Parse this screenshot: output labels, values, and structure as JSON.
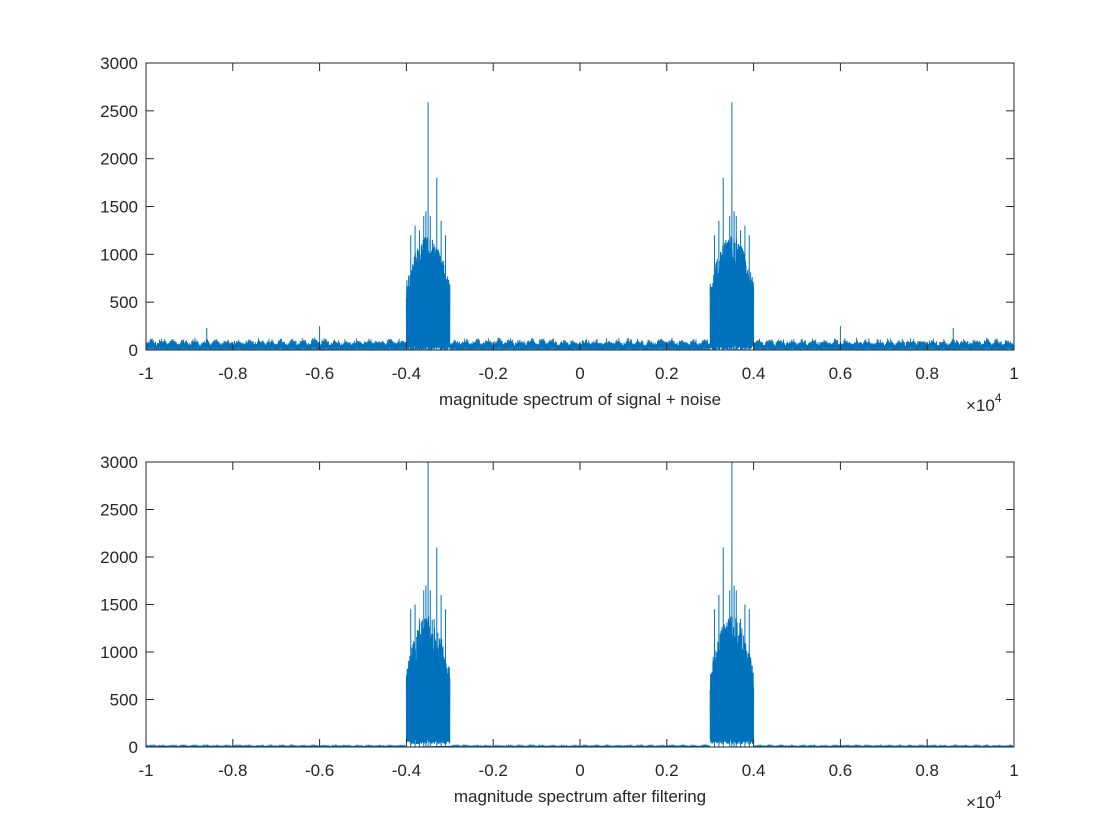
{
  "colors": {
    "series": "#0072BD",
    "axis": "#262626",
    "background": "#ffffff"
  },
  "chart_data": [
    {
      "type": "line",
      "xlabel": "magnitude spectrum of signal + noise",
      "ylabel": "",
      "title": "",
      "xlim": [
        -10000,
        10000
      ],
      "ylim": [
        0,
        3000
      ],
      "x_exponent_label": "×10",
      "x_exponent_power": "4",
      "x_tick_labels": [
        "-1",
        "-0.8",
        "-0.6",
        "-0.4",
        "-0.2",
        "0",
        "0.2",
        "0.4",
        "0.6",
        "0.8",
        "1"
      ],
      "x_tick_values": [
        -10000,
        -8000,
        -6000,
        -4000,
        -2000,
        0,
        2000,
        4000,
        6000,
        8000,
        10000
      ],
      "y_tick_labels": [
        "0",
        "500",
        "1000",
        "1500",
        "2000",
        "2500",
        "3000"
      ],
      "y_tick_values": [
        0,
        500,
        1000,
        1500,
        2000,
        2500,
        3000
      ],
      "grid": false,
      "series": [
        {
          "noise_floor_level": 130,
          "noise_floor_period": 250,
          "bands": [
            {
              "x_start": -4000,
              "x_end": -3000,
              "fill_low": 0,
              "fill_high": 1200
            },
            {
              "x_start": 3000,
              "x_end": 4000,
              "fill_low": 0,
              "fill_high": 1200
            }
          ],
          "spikes": [
            {
              "x": -3900,
              "y": 1200
            },
            {
              "x": -3800,
              "y": 1300
            },
            {
              "x": -3700,
              "y": 1250
            },
            {
              "x": -3600,
              "y": 1400
            },
            {
              "x": -3550,
              "y": 1450
            },
            {
              "x": -3500,
              "y": 2590
            },
            {
              "x": -3450,
              "y": 1400
            },
            {
              "x": -3300,
              "y": 1800
            },
            {
              "x": -3200,
              "y": 1350
            },
            {
              "x": -3100,
              "y": 1200
            },
            {
              "x": 3100,
              "y": 1200
            },
            {
              "x": 3200,
              "y": 1350
            },
            {
              "x": 3300,
              "y": 1800
            },
            {
              "x": 3450,
              "y": 1400
            },
            {
              "x": 3500,
              "y": 2590
            },
            {
              "x": 3550,
              "y": 1450
            },
            {
              "x": 3600,
              "y": 1400
            },
            {
              "x": 3700,
              "y": 1250
            },
            {
              "x": 3800,
              "y": 1300
            },
            {
              "x": 3900,
              "y": 1200
            },
            {
              "x": -6000,
              "y": 250
            },
            {
              "x": 6000,
              "y": 250
            },
            {
              "x": -8600,
              "y": 230
            },
            {
              "x": 8600,
              "y": 230
            }
          ]
        }
      ]
    },
    {
      "type": "line",
      "xlabel": "magnitude spectrum after filtering",
      "ylabel": "",
      "title": "",
      "xlim": [
        -10000,
        10000
      ],
      "ylim": [
        0,
        3000
      ],
      "x_exponent_label": "×10",
      "x_exponent_power": "4",
      "x_tick_labels": [
        "-1",
        "-0.8",
        "-0.6",
        "-0.4",
        "-0.2",
        "0",
        "0.2",
        "0.4",
        "0.6",
        "0.8",
        "1"
      ],
      "x_tick_values": [
        -10000,
        -8000,
        -6000,
        -4000,
        -2000,
        0,
        2000,
        4000,
        6000,
        8000,
        10000
      ],
      "y_tick_labels": [
        "0",
        "500",
        "1000",
        "1500",
        "2000",
        "2500",
        "3000"
      ],
      "y_tick_values": [
        0,
        500,
        1000,
        1500,
        2000,
        2500,
        3000
      ],
      "grid": false,
      "series": [
        {
          "noise_floor_level": 20,
          "noise_floor_period": 250,
          "bands": [
            {
              "x_start": -4000,
              "x_end": -3000,
              "fill_low": 30,
              "fill_high": 1400
            },
            {
              "x_start": 3000,
              "x_end": 4000,
              "fill_low": 30,
              "fill_high": 1400
            }
          ],
          "spikes": [
            {
              "x": -3900,
              "y": 1450
            },
            {
              "x": -3800,
              "y": 1500
            },
            {
              "x": -3700,
              "y": 1350
            },
            {
              "x": -3600,
              "y": 1650
            },
            {
              "x": -3550,
              "y": 1700
            },
            {
              "x": -3500,
              "y": 3000
            },
            {
              "x": -3450,
              "y": 1650
            },
            {
              "x": -3300,
              "y": 2100
            },
            {
              "x": -3200,
              "y": 1600
            },
            {
              "x": -3100,
              "y": 1450
            },
            {
              "x": 3100,
              "y": 1450
            },
            {
              "x": 3200,
              "y": 1600
            },
            {
              "x": 3300,
              "y": 2100
            },
            {
              "x": 3450,
              "y": 1650
            },
            {
              "x": 3500,
              "y": 3000
            },
            {
              "x": 3550,
              "y": 1700
            },
            {
              "x": 3600,
              "y": 1650
            },
            {
              "x": 3700,
              "y": 1350
            },
            {
              "x": 3800,
              "y": 1500
            },
            {
              "x": 3900,
              "y": 1450
            }
          ]
        }
      ]
    }
  ]
}
